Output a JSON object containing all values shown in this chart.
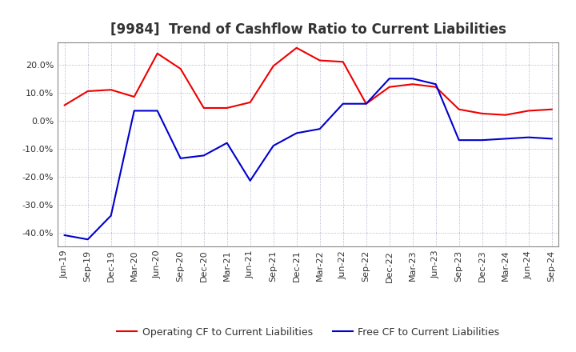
{
  "title": "[9984]  Trend of Cashflow Ratio to Current Liabilities",
  "x_labels": [
    "Jun-19",
    "Sep-19",
    "Dec-19",
    "Mar-20",
    "Jun-20",
    "Sep-20",
    "Dec-20",
    "Mar-21",
    "Jun-21",
    "Sep-21",
    "Dec-21",
    "Mar-22",
    "Jun-22",
    "Sep-22",
    "Dec-22",
    "Mar-23",
    "Jun-23",
    "Sep-23",
    "Dec-23",
    "Mar-24",
    "Jun-24",
    "Sep-24"
  ],
  "operating_cf": [
    5.5,
    10.5,
    11.0,
    8.5,
    24.0,
    18.5,
    4.5,
    4.5,
    6.5,
    19.5,
    26.0,
    21.5,
    21.0,
    6.0,
    12.0,
    13.0,
    12.0,
    4.0,
    2.5,
    2.0,
    3.5,
    4.0
  ],
  "free_cf": [
    -41.0,
    -42.5,
    -34.0,
    3.5,
    3.5,
    -13.5,
    -12.5,
    -8.0,
    -21.5,
    -9.0,
    -4.5,
    -3.0,
    6.0,
    6.0,
    15.0,
    15.0,
    13.0,
    -7.0,
    -7.0,
    -6.5,
    -6.0,
    -6.5
  ],
  "ylim": [
    -45,
    28
  ],
  "yticks": [
    -40.0,
    -30.0,
    -20.0,
    -10.0,
    0.0,
    10.0,
    20.0
  ],
  "operating_color": "#EE0000",
  "free_color": "#0000CC",
  "background_color": "#FFFFFF",
  "grid_color": "#8888BB",
  "legend_operating": "Operating CF to Current Liabilities",
  "legend_free": "Free CF to Current Liabilities",
  "title_fontsize": 12,
  "axis_fontsize": 8,
  "legend_fontsize": 9,
  "title_color": "#333333"
}
